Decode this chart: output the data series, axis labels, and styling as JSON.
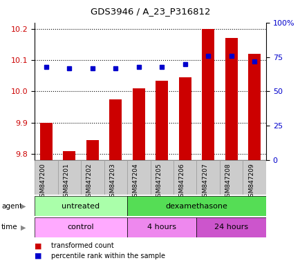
{
  "title": "GDS3946 / A_23_P316812",
  "samples": [
    "GSM847200",
    "GSM847201",
    "GSM847202",
    "GSM847203",
    "GSM847204",
    "GSM847205",
    "GSM847206",
    "GSM847207",
    "GSM847208",
    "GSM847209"
  ],
  "transformed_counts": [
    9.9,
    9.81,
    9.845,
    9.975,
    10.01,
    10.035,
    10.045,
    10.2,
    10.17,
    10.12
  ],
  "percentile_ranks": [
    68,
    67,
    67,
    67,
    68,
    68,
    70,
    76,
    76,
    72
  ],
  "ylim_left": [
    9.78,
    10.22
  ],
  "ylim_right": [
    0,
    100
  ],
  "yticks_left": [
    9.8,
    9.9,
    10.0,
    10.1,
    10.2
  ],
  "yticks_right": [
    0,
    25,
    50,
    75,
    100
  ],
  "ytick_labels_right": [
    "0",
    "25",
    "50",
    "75",
    "100%"
  ],
  "bar_color": "#cc0000",
  "dot_color": "#0000cc",
  "bar_bottom": 9.78,
  "agent_groups": [
    {
      "label": "untreated",
      "start": 0,
      "end": 4,
      "color": "#aaffaa"
    },
    {
      "label": "dexamethasone",
      "start": 4,
      "end": 10,
      "color": "#55dd55"
    }
  ],
  "time_groups": [
    {
      "label": "control",
      "start": 0,
      "end": 4,
      "color": "#ffaaff"
    },
    {
      "label": "4 hours",
      "start": 4,
      "end": 7,
      "color": "#ee88ee"
    },
    {
      "label": "24 hours",
      "start": 7,
      "end": 10,
      "color": "#cc55cc"
    }
  ],
  "legend_items": [
    {
      "label": "transformed count",
      "color": "#cc0000"
    },
    {
      "label": "percentile rank within the sample",
      "color": "#0000cc"
    }
  ],
  "tick_label_color_left": "#cc0000",
  "tick_label_color_right": "#0000cc"
}
